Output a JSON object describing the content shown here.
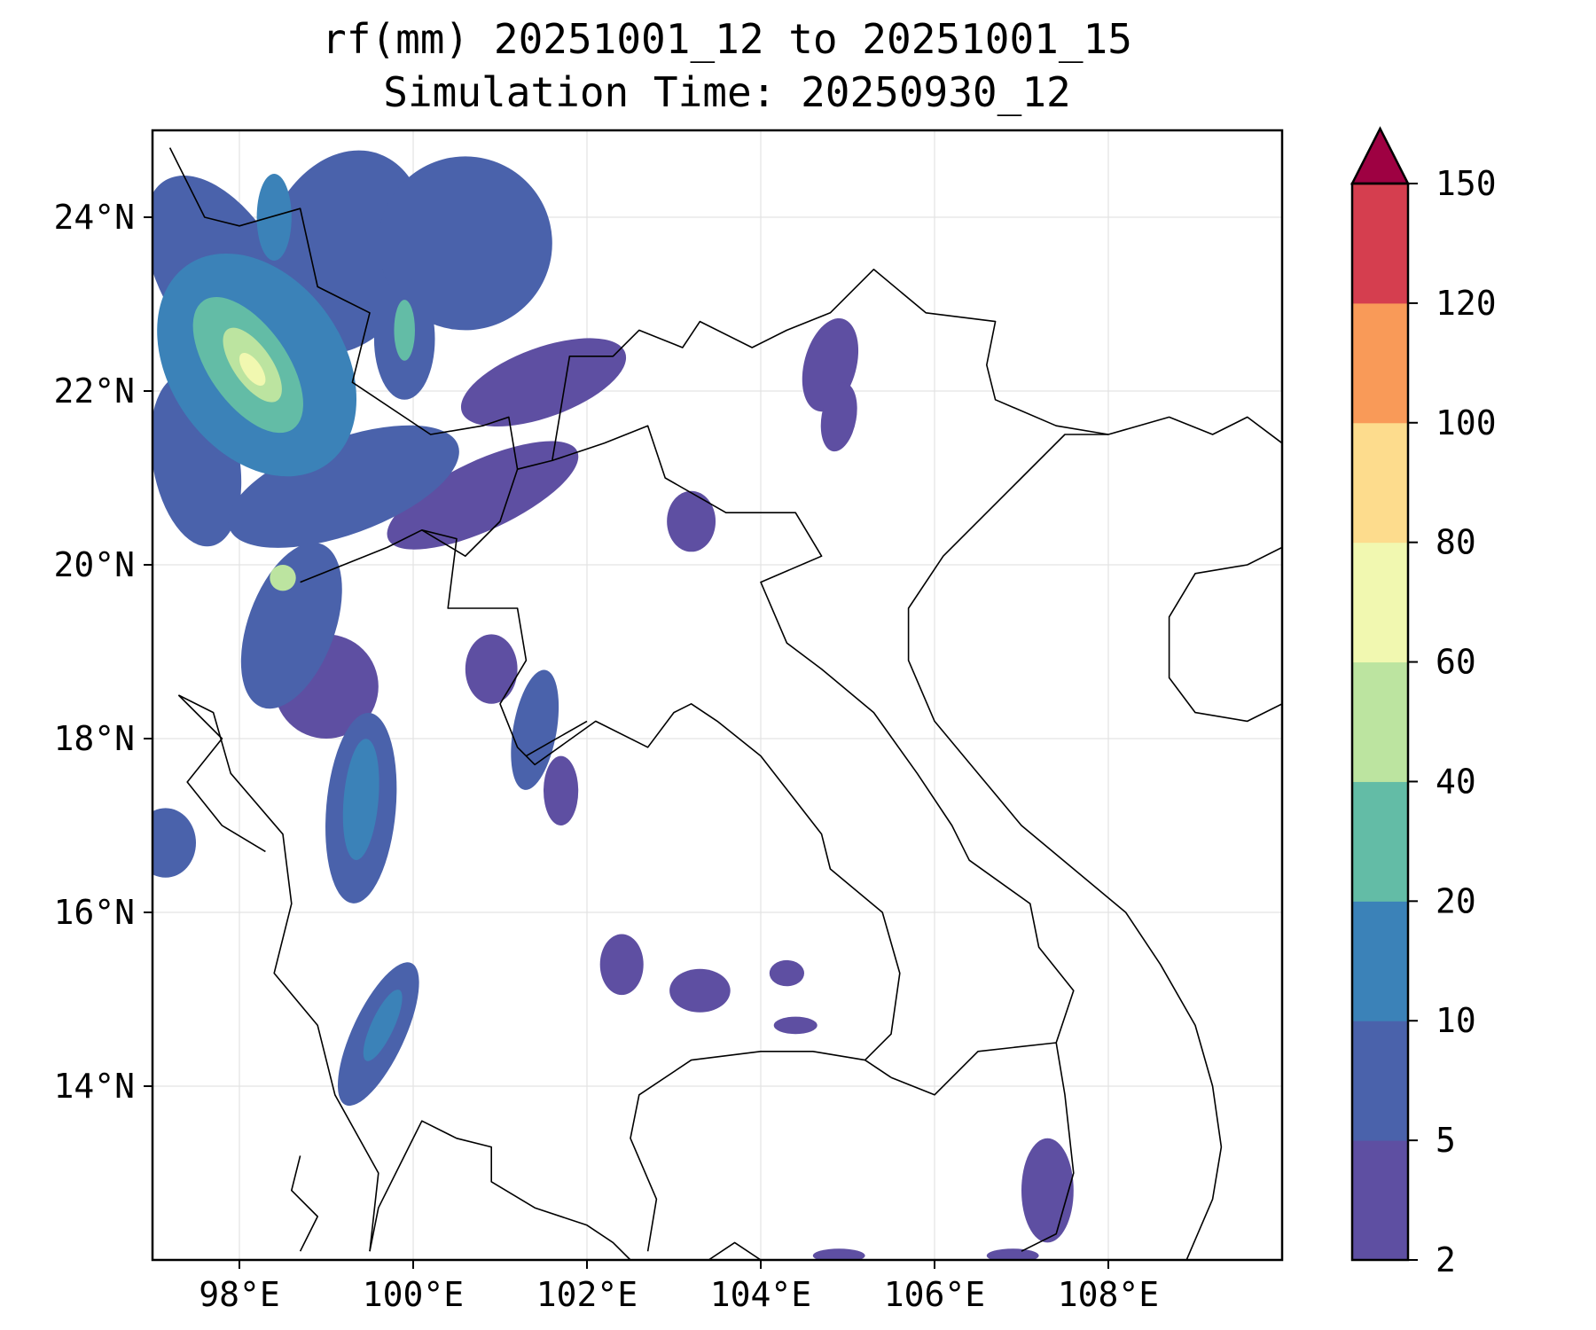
{
  "title": {
    "line1": "rf(mm) 20251001_12 to 20251001_15",
    "line2": "Simulation Time: 20250930_12"
  },
  "map": {
    "lon_range": [
      97,
      110
    ],
    "lat_range": [
      12,
      25
    ],
    "lon_ticks": [
      {
        "value": 98,
        "label": "98°E"
      },
      {
        "value": 100,
        "label": "100°E"
      },
      {
        "value": 102,
        "label": "102°E"
      },
      {
        "value": 104,
        "label": "104°E"
      },
      {
        "value": 106,
        "label": "106°E"
      },
      {
        "value": 108,
        "label": "108°E"
      }
    ],
    "lat_ticks": [
      {
        "value": 24,
        "label": "24°N"
      },
      {
        "value": 22,
        "label": "22°N"
      },
      {
        "value": 20,
        "label": "20°N"
      },
      {
        "value": 18,
        "label": "18°N"
      },
      {
        "value": 16,
        "label": "16°N"
      },
      {
        "value": 14,
        "label": "14°N"
      }
    ],
    "gridlines": true
  },
  "colorbar": {
    "levels": [
      {
        "label": "2",
        "color": "#5e4fa2"
      },
      {
        "label": "5",
        "color": "#4a62ab"
      },
      {
        "label": "10",
        "color": "#3b82b8"
      },
      {
        "label": "20",
        "color": "#63bca6"
      },
      {
        "label": "40",
        "color": "#bce4a0"
      },
      {
        "label": "60",
        "color": "#f1f8b0"
      },
      {
        "label": "80",
        "color": "#fddc8d"
      },
      {
        "label": "100",
        "color": "#f99a58"
      },
      {
        "label": "120",
        "color": "#d53e4f"
      },
      {
        "label": "150",
        "color": "#9e0142"
      }
    ]
  },
  "rain_blobs": [
    {
      "lon": 97.8,
      "lat": 23.3,
      "rx": 0.7,
      "ry": 1.3,
      "rot": -30,
      "level": 1
    },
    {
      "lon": 98.2,
      "lat": 22.3,
      "rx": 1.0,
      "ry": 1.4,
      "rot": -35,
      "level": 2
    },
    {
      "lon": 98.1,
      "lat": 22.3,
      "rx": 0.45,
      "ry": 0.9,
      "rot": -35,
      "level": 3
    },
    {
      "lon": 98.15,
      "lat": 22.3,
      "rx": 0.22,
      "ry": 0.5,
      "rot": -35,
      "level": 4
    },
    {
      "lon": 98.15,
      "lat": 22.25,
      "rx": 0.1,
      "ry": 0.22,
      "rot": -35,
      "level": 5
    },
    {
      "lon": 97.5,
      "lat": 21.2,
      "rx": 0.5,
      "ry": 1.0,
      "rot": -10,
      "level": 1
    },
    {
      "lon": 99.2,
      "lat": 23.6,
      "rx": 0.9,
      "ry": 1.2,
      "rot": 20,
      "level": 1
    },
    {
      "lon": 100.6,
      "lat": 23.7,
      "rx": 1.0,
      "ry": 1.0,
      "rot": 30,
      "level": 1
    },
    {
      "lon": 99.9,
      "lat": 22.6,
      "rx": 0.35,
      "ry": 0.7,
      "rot": 0,
      "level": 1
    },
    {
      "lon": 99.9,
      "lat": 22.7,
      "rx": 0.12,
      "ry": 0.35,
      "rot": 0,
      "level": 3
    },
    {
      "lon": 98.4,
      "lat": 24.0,
      "rx": 0.2,
      "ry": 0.5,
      "rot": 0,
      "level": 2
    },
    {
      "lon": 101.5,
      "lat": 22.1,
      "rx": 1.0,
      "ry": 0.4,
      "rot": -20,
      "level": 0
    },
    {
      "lon": 99.2,
      "lat": 20.9,
      "rx": 1.4,
      "ry": 0.55,
      "rot": -20,
      "level": 1
    },
    {
      "lon": 100.8,
      "lat": 20.8,
      "rx": 1.2,
      "ry": 0.4,
      "rot": -25,
      "level": 0
    },
    {
      "lon": 98.6,
      "lat": 19.3,
      "rx": 0.5,
      "ry": 1.0,
      "rot": 20,
      "level": 1
    },
    {
      "lon": 98.5,
      "lat": 19.85,
      "rx": 0.15,
      "ry": 0.15,
      "rot": 0,
      "level": 4
    },
    {
      "lon": 99.0,
      "lat": 18.6,
      "rx": 0.6,
      "ry": 0.6,
      "rot": 0,
      "level": 0
    },
    {
      "lon": 99.4,
      "lat": 17.2,
      "rx": 0.4,
      "ry": 1.1,
      "rot": 5,
      "level": 1
    },
    {
      "lon": 99.4,
      "lat": 17.3,
      "rx": 0.2,
      "ry": 0.7,
      "rot": 5,
      "level": 2
    },
    {
      "lon": 101.4,
      "lat": 18.1,
      "rx": 0.25,
      "ry": 0.7,
      "rot": 10,
      "level": 1
    },
    {
      "lon": 101.7,
      "lat": 17.4,
      "rx": 0.2,
      "ry": 0.4,
      "rot": 0,
      "level": 0
    },
    {
      "lon": 100.9,
      "lat": 18.8,
      "rx": 0.3,
      "ry": 0.4,
      "rot": 0,
      "level": 0
    },
    {
      "lon": 97.15,
      "lat": 16.8,
      "rx": 0.35,
      "ry": 0.4,
      "rot": 0,
      "level": 1
    },
    {
      "lon": 99.6,
      "lat": 14.6,
      "rx": 0.3,
      "ry": 0.9,
      "rot": 25,
      "level": 1
    },
    {
      "lon": 99.65,
      "lat": 14.7,
      "rx": 0.13,
      "ry": 0.45,
      "rot": 25,
      "level": 2
    },
    {
      "lon": 103.2,
      "lat": 20.5,
      "rx": 0.28,
      "ry": 0.35,
      "rot": 0,
      "level": 0
    },
    {
      "lon": 104.8,
      "lat": 22.3,
      "rx": 0.3,
      "ry": 0.55,
      "rot": 15,
      "level": 0
    },
    {
      "lon": 104.9,
      "lat": 21.7,
      "rx": 0.2,
      "ry": 0.4,
      "rot": 10,
      "level": 0
    },
    {
      "lon": 102.4,
      "lat": 15.4,
      "rx": 0.25,
      "ry": 0.35,
      "rot": 0,
      "level": 0
    },
    {
      "lon": 103.3,
      "lat": 15.1,
      "rx": 0.35,
      "ry": 0.25,
      "rot": 0,
      "level": 0
    },
    {
      "lon": 104.3,
      "lat": 15.3,
      "rx": 0.2,
      "ry": 0.15,
      "rot": 0,
      "level": 0
    },
    {
      "lon": 104.4,
      "lat": 14.7,
      "rx": 0.25,
      "ry": 0.1,
      "rot": 0,
      "level": 0
    },
    {
      "lon": 107.3,
      "lat": 12.8,
      "rx": 0.3,
      "ry": 0.6,
      "rot": 0,
      "level": 0
    },
    {
      "lon": 104.9,
      "lat": 12.05,
      "rx": 0.3,
      "ry": 0.08,
      "rot": 0,
      "level": 0
    },
    {
      "lon": 106.9,
      "lat": 12.05,
      "rx": 0.3,
      "ry": 0.08,
      "rot": 0,
      "level": 0
    }
  ],
  "borders": [
    [
      [
        97.2,
        24.8
      ],
      [
        97.6,
        24.0
      ],
      [
        98.0,
        23.9
      ],
      [
        98.7,
        24.1
      ],
      [
        98.9,
        23.2
      ],
      [
        99.5,
        22.9
      ],
      [
        99.3,
        22.1
      ],
      [
        100.2,
        21.5
      ],
      [
        100.8,
        21.6
      ],
      [
        101.1,
        21.7
      ],
      [
        101.2,
        21.1
      ],
      [
        101.6,
        21.2
      ],
      [
        101.8,
        22.4
      ],
      [
        102.3,
        22.4
      ],
      [
        102.6,
        22.7
      ],
      [
        103.1,
        22.5
      ],
      [
        103.3,
        22.8
      ],
      [
        103.9,
        22.5
      ],
      [
        104.3,
        22.7
      ],
      [
        104.8,
        22.9
      ],
      [
        105.3,
        23.4
      ],
      [
        105.9,
        22.9
      ],
      [
        106.7,
        22.8
      ],
      [
        106.6,
        22.3
      ],
      [
        106.7,
        21.9
      ],
      [
        107.4,
        21.6
      ],
      [
        108.0,
        21.5
      ]
    ],
    [
      [
        97.3,
        18.5
      ],
      [
        97.7,
        18.3
      ],
      [
        97.9,
        17.6
      ],
      [
        98.5,
        16.9
      ],
      [
        98.6,
        16.1
      ],
      [
        98.4,
        15.3
      ],
      [
        98.9,
        14.7
      ],
      [
        99.1,
        13.9
      ],
      [
        99.6,
        13.0
      ],
      [
        99.5,
        12.1
      ]
    ],
    [
      [
        97.3,
        18.5
      ],
      [
        97.8,
        18.0
      ],
      [
        97.4,
        17.5
      ],
      [
        97.8,
        17.0
      ],
      [
        98.3,
        16.7
      ]
    ],
    [
      [
        98.7,
        19.8
      ],
      [
        99.7,
        20.2
      ],
      [
        100.1,
        20.4
      ],
      [
        100.5,
        20.3
      ],
      [
        100.4,
        19.5
      ],
      [
        101.2,
        19.5
      ],
      [
        101.3,
        18.9
      ],
      [
        101.0,
        18.4
      ],
      [
        101.2,
        17.9
      ],
      [
        101.4,
        17.7
      ],
      [
        102.1,
        18.2
      ],
      [
        102.7,
        17.9
      ],
      [
        103.0,
        18.3
      ],
      [
        103.2,
        18.4
      ],
      [
        103.5,
        18.2
      ],
      [
        104.0,
        17.8
      ],
      [
        104.7,
        16.9
      ],
      [
        104.8,
        16.5
      ],
      [
        105.4,
        16.0
      ],
      [
        105.6,
        15.3
      ],
      [
        105.5,
        14.6
      ],
      [
        105.2,
        14.3
      ],
      [
        104.6,
        14.4
      ],
      [
        104.0,
        14.4
      ],
      [
        103.2,
        14.3
      ],
      [
        102.6,
        13.9
      ],
      [
        102.5,
        13.4
      ],
      [
        102.8,
        12.7
      ],
      [
        102.7,
        12.1
      ]
    ],
    [
      [
        101.3,
        17.8
      ],
      [
        102.0,
        18.2
      ]
    ],
    [
      [
        101.2,
        21.1
      ],
      [
        101.0,
        20.5
      ],
      [
        100.6,
        20.1
      ],
      [
        100.1,
        20.4
      ]
    ],
    [
      [
        101.6,
        21.2
      ],
      [
        102.2,
        21.4
      ],
      [
        102.7,
        21.6
      ],
      [
        102.9,
        21.0
      ],
      [
        103.6,
        20.6
      ],
      [
        104.4,
        20.6
      ],
      [
        104.7,
        20.1
      ],
      [
        104.0,
        19.8
      ],
      [
        104.3,
        19.1
      ],
      [
        104.7,
        18.8
      ],
      [
        105.3,
        18.3
      ],
      [
        105.8,
        17.6
      ],
      [
        106.2,
        17.0
      ],
      [
        106.4,
        16.6
      ],
      [
        107.1,
        16.1
      ],
      [
        107.2,
        15.6
      ],
      [
        107.6,
        15.1
      ],
      [
        107.4,
        14.5
      ],
      [
        107.5,
        13.9
      ],
      [
        107.6,
        13.0
      ],
      [
        107.4,
        12.3
      ],
      [
        107.0,
        12.1
      ]
    ],
    [
      [
        105.5,
        14.1
      ],
      [
        106.0,
        13.9
      ],
      [
        106.5,
        14.4
      ],
      [
        107.4,
        14.5
      ]
    ],
    [
      [
        105.2,
        14.3
      ],
      [
        105.5,
        14.1
      ]
    ]
  ],
  "coasts": [
    [
      [
        99.5,
        12.1
      ],
      [
        99.6,
        12.6
      ],
      [
        99.9,
        13.2
      ],
      [
        100.1,
        13.6
      ],
      [
        100.5,
        13.4
      ],
      [
        100.9,
        13.3
      ],
      [
        100.9,
        12.9
      ],
      [
        101.4,
        12.6
      ],
      [
        102.0,
        12.4
      ],
      [
        102.3,
        12.2
      ],
      [
        102.5,
        12.0
      ]
    ],
    [
      [
        103.4,
        12.0
      ],
      [
        103.7,
        12.2
      ],
      [
        104.0,
        12.0
      ]
    ],
    [
      [
        108.9,
        12.0
      ],
      [
        109.2,
        12.7
      ],
      [
        109.3,
        13.3
      ],
      [
        109.2,
        14.0
      ],
      [
        109.0,
        14.7
      ],
      [
        108.6,
        15.4
      ],
      [
        108.2,
        16.0
      ],
      [
        107.6,
        16.5
      ],
      [
        107.0,
        17.0
      ],
      [
        106.5,
        17.6
      ],
      [
        106.0,
        18.2
      ],
      [
        105.7,
        18.9
      ],
      [
        105.7,
        19.5
      ],
      [
        106.1,
        20.1
      ],
      [
        106.6,
        20.6
      ],
      [
        107.0,
        21.0
      ],
      [
        107.5,
        21.5
      ],
      [
        108.0,
        21.5
      ],
      [
        108.7,
        21.7
      ],
      [
        109.2,
        21.5
      ],
      [
        109.6,
        21.7
      ],
      [
        110.0,
        21.4
      ]
    ],
    [
      [
        110.0,
        20.2
      ],
      [
        109.6,
        20.0
      ],
      [
        109.0,
        19.9
      ],
      [
        108.7,
        19.4
      ],
      [
        108.7,
        18.7
      ],
      [
        109.0,
        18.3
      ],
      [
        109.6,
        18.2
      ],
      [
        110.0,
        18.4
      ]
    ],
    [
      [
        98.7,
        13.2
      ],
      [
        98.6,
        12.8
      ],
      [
        98.9,
        12.5
      ],
      [
        98.7,
        12.1
      ]
    ]
  ]
}
